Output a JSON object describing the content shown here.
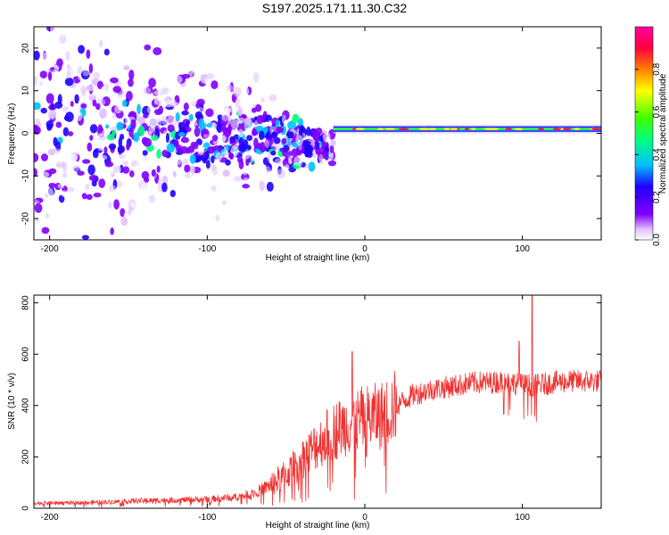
{
  "title": "S197.2025.171.11.30.C32",
  "chart_data": [
    {
      "type": "heatmap",
      "xlabel": "Height of straight line (km)",
      "ylabel": "Frequency (Hz)",
      "xlim": [
        -210,
        150
      ],
      "ylim": [
        -25,
        25
      ],
      "xticks": [
        -200,
        -100,
        0,
        100
      ],
      "yticks": [
        -20,
        -10,
        0,
        10,
        20
      ],
      "colorbar": {
        "label": "Normalized spectral amplitude",
        "range": [
          0,
          1
        ],
        "ticks": [
          0.0,
          0.2,
          0.4,
          0.6,
          0.8
        ],
        "colors": [
          "#ffffff",
          "#e0c0ff",
          "#8000ff",
          "#2000ff",
          "#00c0ff",
          "#00ff80",
          "#40ff00",
          "#ffff00",
          "#ff8000",
          "#ff0040",
          "#ff00a0"
        ]
      },
      "features": [
        {
          "x_range": [
            -210,
            -20
          ],
          "description": "scattered low-amplitude blobs, frequency spread roughly -25 to 25 Hz narrowing toward 0"
        },
        {
          "x_range": [
            -20,
            150
          ],
          "description": "narrow high-amplitude carrier band centred near 1 Hz",
          "center_freq": 1
        }
      ]
    },
    {
      "type": "line",
      "xlabel": "Height of straight line (km)",
      "ylabel": "SNR (10 * v/v)",
      "xlim": [
        -210,
        150
      ],
      "ylim": [
        0,
        830
      ],
      "xticks": [
        -200,
        -100,
        0,
        100
      ],
      "yticks": [
        0,
        200,
        400,
        600,
        800
      ],
      "color": "#f03232",
      "envelope": {
        "x": [
          -210,
          -180,
          -160,
          -140,
          -120,
          -100,
          -80,
          -70,
          -60,
          -50,
          -40,
          -30,
          -20,
          -10,
          0,
          10,
          20,
          30,
          40,
          50,
          60,
          70,
          80,
          90,
          100,
          110,
          120,
          130,
          140,
          150
        ],
        "y": [
          20,
          22,
          25,
          30,
          32,
          35,
          45,
          60,
          90,
          130,
          190,
          250,
          300,
          330,
          350,
          360,
          400,
          440,
          460,
          470,
          480,
          490,
          490,
          495,
          480,
          480,
          490,
          495,
          495,
          495
        ]
      },
      "peaks": [
        {
          "x": -8,
          "y": 610
        },
        {
          "x": 98,
          "y": 650
        },
        {
          "x": 106,
          "y": 830
        }
      ]
    }
  ]
}
